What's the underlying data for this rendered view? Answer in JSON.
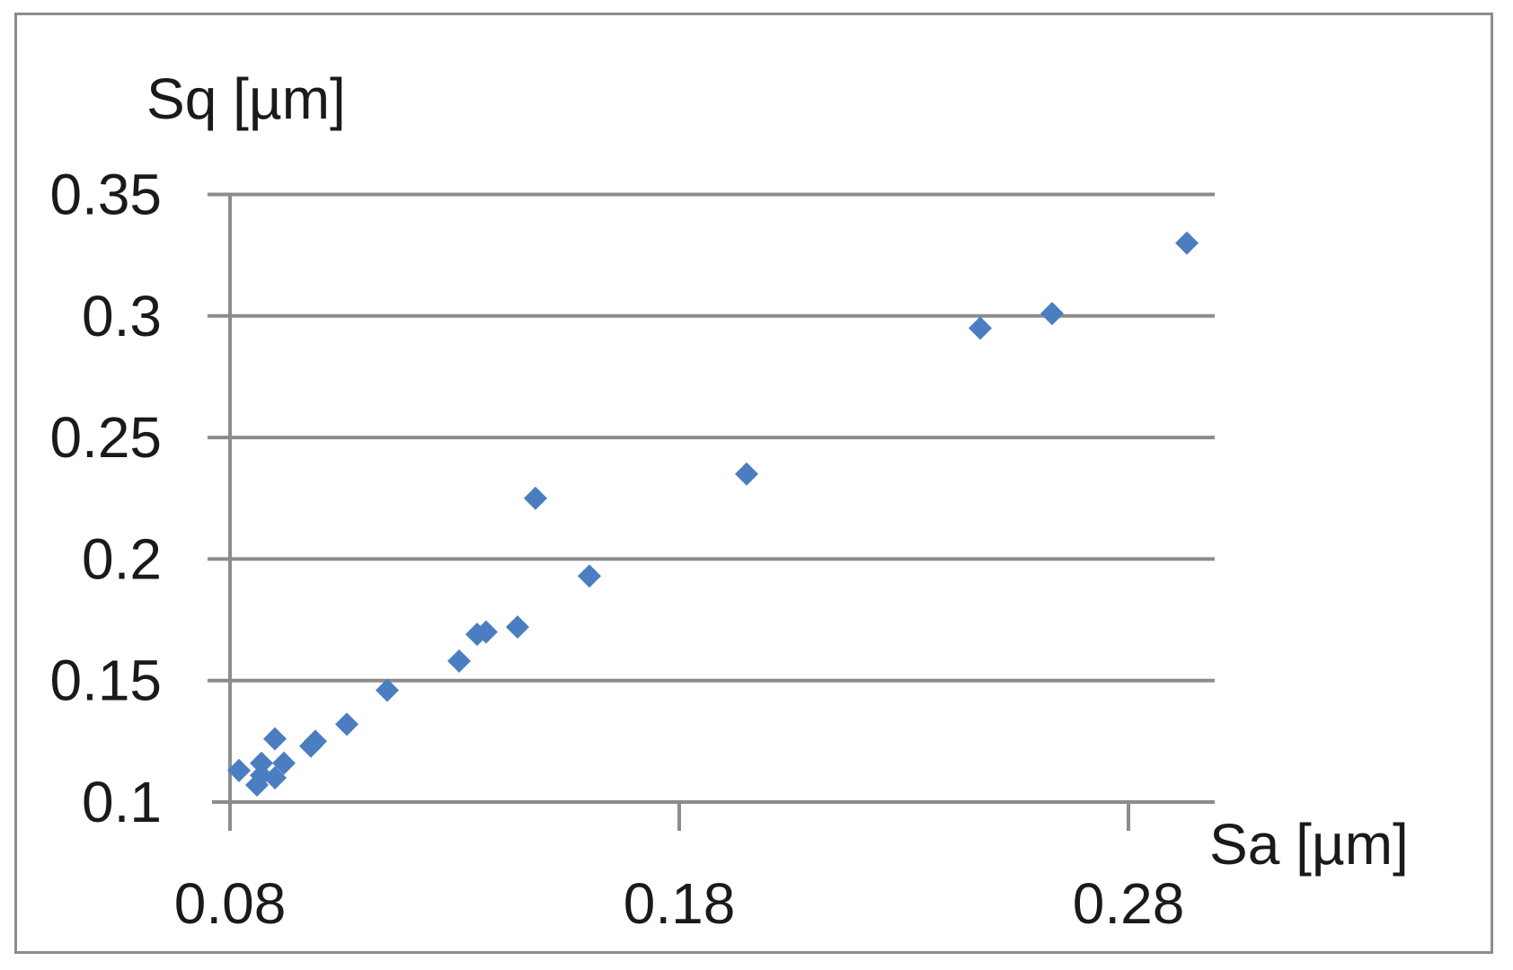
{
  "chart_data": {
    "type": "scatter",
    "xlabel": "Sa [µm]",
    "ylabel": "Sq [µm]",
    "xlim": [
      0.08,
      0.3
    ],
    "ylim": [
      0.1,
      0.35
    ],
    "x_ticks": [
      "0.08",
      "0.18",
      "0.28"
    ],
    "y_ticks": [
      "0.1",
      "0.15",
      "0.2",
      "0.25",
      "0.3",
      "0.35"
    ],
    "x_tick_values": [
      0.08,
      0.18,
      0.28
    ],
    "y_tick_values": [
      0.1,
      0.15,
      0.2,
      0.25,
      0.3,
      0.35
    ],
    "grid": "horizontal",
    "legend": "none",
    "marker": "diamond",
    "colors": {
      "marker": "#4a7ec1",
      "grid": "#8c8c8c",
      "axis": "#8c8c8c",
      "text": "#1a1a1a"
    },
    "series": [
      {
        "x": [
          0.082,
          0.086,
          0.087,
          0.087,
          0.09,
          0.09,
          0.092,
          0.098,
          0.099,
          0.106,
          0.115,
          0.131,
          0.135,
          0.137,
          0.144,
          0.148,
          0.16,
          0.195,
          0.247,
          0.263,
          0.293
        ],
        "y": [
          0.113,
          0.107,
          0.111,
          0.116,
          0.126,
          0.11,
          0.116,
          0.123,
          0.125,
          0.132,
          0.146,
          0.158,
          0.169,
          0.17,
          0.172,
          0.225,
          0.193,
          0.235,
          0.295,
          0.301,
          0.33
        ]
      }
    ]
  }
}
